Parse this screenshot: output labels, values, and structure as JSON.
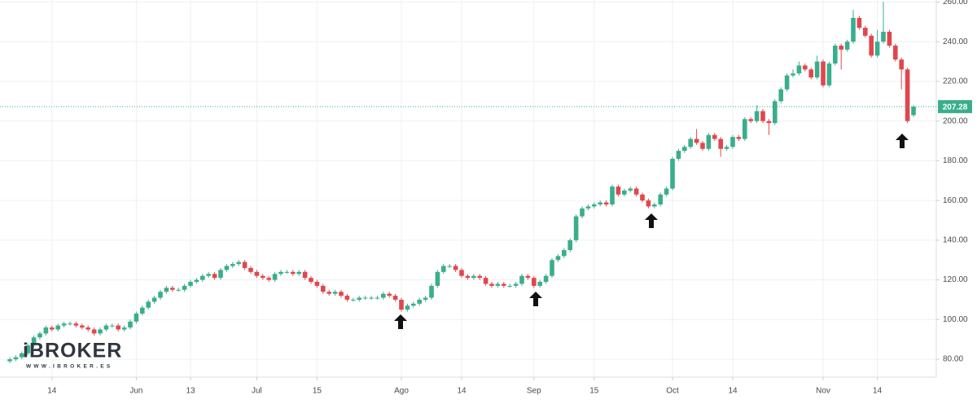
{
  "chart_data": {
    "type": "candlestick",
    "categories": [
      null,
      null,
      null,
      null,
      null,
      null,
      null,
      "14",
      null,
      null,
      null,
      null,
      null,
      null,
      null,
      null,
      null,
      null,
      null,
      null,
      null,
      "Jun",
      null,
      null,
      null,
      null,
      null,
      null,
      null,
      null,
      "13",
      null,
      null,
      null,
      null,
      null,
      null,
      null,
      null,
      null,
      null,
      "Jul",
      null,
      null,
      null,
      null,
      null,
      null,
      null,
      null,
      null,
      "15",
      null,
      null,
      null,
      null,
      null,
      null,
      null,
      null,
      null,
      null,
      null,
      null,
      null,
      "Ago",
      null,
      null,
      null,
      null,
      null,
      null,
      null,
      null,
      null,
      "14",
      null,
      null,
      null,
      null,
      null,
      null,
      null,
      null,
      null,
      null,
      null,
      "Sep",
      null,
      null,
      null,
      null,
      null,
      null,
      null,
      null,
      null,
      "15",
      null,
      null,
      null,
      null,
      null,
      null,
      null,
      null,
      null,
      null,
      null,
      null,
      "Oct",
      null,
      null,
      null,
      null,
      null,
      null,
      null,
      null,
      null,
      "14",
      null,
      null,
      null,
      null,
      null,
      null,
      null,
      null,
      null,
      null,
      null,
      null,
      null,
      null,
      "Nov",
      null,
      null,
      null,
      null,
      null,
      null,
      null,
      null,
      "14",
      null,
      null,
      null,
      null,
      null,
      null
    ],
    "open": [
      79,
      80,
      81,
      83,
      87,
      91,
      93,
      96,
      95,
      97,
      98,
      98,
      97,
      96,
      95,
      93,
      95,
      97,
      97,
      95,
      96,
      99,
      103,
      106,
      109,
      111,
      114,
      116,
      115,
      115,
      117,
      119,
      120,
      122,
      123,
      121,
      125,
      127,
      128,
      129,
      126,
      124,
      122,
      121,
      120,
      123,
      124,
      124,
      123,
      124,
      121,
      119,
      117,
      114,
      113,
      114,
      112,
      110,
      110,
      111,
      111,
      111,
      111,
      113,
      112,
      110,
      105,
      107,
      108,
      110,
      111,
      117,
      124,
      127,
      127,
      125,
      122,
      121,
      122,
      121,
      118,
      117,
      118,
      117,
      117,
      118,
      122,
      121,
      117,
      119,
      122,
      130,
      132,
      135,
      140,
      152,
      156,
      157,
      158,
      159,
      158,
      167,
      163,
      165,
      166,
      163,
      160,
      157,
      158,
      163,
      166,
      181,
      185,
      187,
      191,
      189,
      186,
      193,
      191,
      186,
      187,
      192,
      191,
      201,
      200,
      205,
      200,
      199,
      210,
      216,
      223,
      224,
      228,
      226,
      222,
      230,
      218,
      229,
      238,
      236,
      240,
      252,
      247,
      243,
      233,
      240,
      245,
      238,
      231,
      226,
      203
    ],
    "high": [
      81,
      82,
      84,
      88,
      92,
      94,
      97,
      97,
      98,
      99,
      99,
      99,
      98,
      97,
      96,
      96,
      98,
      98,
      98,
      97,
      100,
      104,
      107,
      110,
      112,
      115,
      117,
      117,
      116,
      118,
      120,
      121,
      123,
      124,
      124,
      126,
      128,
      129,
      130,
      130,
      127,
      125,
      123,
      122,
      124,
      125,
      125,
      125,
      125,
      125,
      122,
      120,
      118,
      115,
      115,
      115,
      113,
      111,
      112,
      112,
      112,
      112,
      114,
      114,
      113,
      111,
      108,
      109,
      111,
      112,
      118,
      125,
      128,
      128,
      128,
      126,
      123,
      123,
      123,
      122,
      119,
      119,
      119,
      118,
      119,
      123,
      123,
      122,
      120,
      123,
      131,
      133,
      136,
      141,
      153,
      157,
      158,
      159,
      160,
      160,
      168,
      168,
      166,
      167,
      167,
      164,
      161,
      159,
      164,
      167,
      182,
      186,
      188,
      192,
      196,
      190,
      194,
      194,
      192,
      188,
      193,
      193,
      202,
      202,
      208,
      206,
      201,
      211,
      217,
      224,
      226,
      230,
      229,
      227,
      233,
      231,
      230,
      239,
      239,
      241,
      256,
      253,
      248,
      244,
      246,
      260,
      246,
      239,
      232,
      227,
      208
    ],
    "low": [
      78,
      79,
      80,
      82,
      86,
      90,
      92,
      94,
      94,
      96,
      97,
      96,
      95,
      94,
      92,
      92,
      94,
      96,
      94,
      94,
      95,
      98,
      102,
      105,
      108,
      110,
      113,
      114,
      114,
      114,
      116,
      118,
      119,
      121,
      120,
      120,
      124,
      126,
      127,
      125,
      123,
      121,
      120,
      119,
      119,
      122,
      123,
      122,
      122,
      120,
      118,
      116,
      113,
      112,
      112,
      111,
      109,
      109,
      109,
      110,
      110,
      110,
      110,
      111,
      109,
      104,
      104,
      106,
      107,
      109,
      110,
      116,
      123,
      126,
      124,
      121,
      120,
      120,
      120,
      117,
      116,
      116,
      116,
      116,
      116,
      117,
      120,
      116,
      116,
      118,
      121,
      129,
      131,
      134,
      139,
      151,
      155,
      156,
      157,
      157,
      157,
      162,
      162,
      164,
      162,
      159,
      156,
      156,
      157,
      162,
      165,
      180,
      184,
      186,
      188,
      185,
      185,
      190,
      182,
      185,
      186,
      190,
      190,
      199,
      199,
      199,
      193,
      198,
      209,
      215,
      222,
      223,
      225,
      221,
      221,
      217,
      217,
      228,
      226,
      235,
      239,
      246,
      242,
      232,
      232,
      239,
      237,
      230,
      216,
      199,
      202
    ],
    "close": [
      80,
      81,
      83,
      87,
      91,
      93,
      96,
      95,
      97,
      98,
      98,
      97,
      96,
      95,
      93,
      95,
      97,
      97,
      95,
      96,
      99,
      103,
      106,
      109,
      111,
      114,
      116,
      115,
      115,
      117,
      119,
      120,
      122,
      123,
      121,
      125,
      127,
      128,
      129,
      126,
      124,
      122,
      121,
      120,
      123,
      124,
      124,
      123,
      124,
      121,
      119,
      117,
      114,
      113,
      114,
      112,
      110,
      110,
      111,
      111,
      111,
      111,
      113,
      112,
      110,
      105,
      107,
      108,
      110,
      111,
      117,
      124,
      127,
      127,
      125,
      122,
      121,
      122,
      121,
      118,
      117,
      118,
      117,
      117,
      118,
      122,
      121,
      117,
      119,
      122,
      130,
      132,
      135,
      140,
      152,
      156,
      157,
      158,
      159,
      158,
      167,
      163,
      165,
      166,
      163,
      160,
      157,
      158,
      163,
      166,
      181,
      185,
      187,
      191,
      189,
      186,
      193,
      191,
      186,
      187,
      192,
      191,
      201,
      200,
      205,
      200,
      199,
      210,
      216,
      223,
      224,
      228,
      226,
      222,
      230,
      218,
      229,
      238,
      236,
      240,
      252,
      247,
      243,
      233,
      240,
      245,
      238,
      231,
      226,
      200,
      207.28
    ],
    "up_color": "#3aae8c",
    "down_color": "#e0474c",
    "last_price": 207.28,
    "last_price_color": "#3aae8c",
    "ylim": [
      71,
      261
    ],
    "yticks": [
      {
        "value": 80,
        "label": "80.00"
      },
      {
        "value": 100,
        "label": "100.00"
      },
      {
        "value": 120,
        "label": "120.00"
      },
      {
        "value": 140,
        "label": "140.00"
      },
      {
        "value": 160,
        "label": "160.00"
      },
      {
        "value": 180,
        "label": "180.00"
      },
      {
        "value": 200,
        "label": "200.00"
      },
      {
        "value": 220,
        "label": "220.00"
      },
      {
        "value": 240,
        "label": "240.00"
      },
      {
        "value": 260,
        "label": "260.00"
      }
    ],
    "grid": true,
    "logo": {
      "brand": "iBROKER",
      "url": "WWW.IBROKER.ES"
    }
  }
}
